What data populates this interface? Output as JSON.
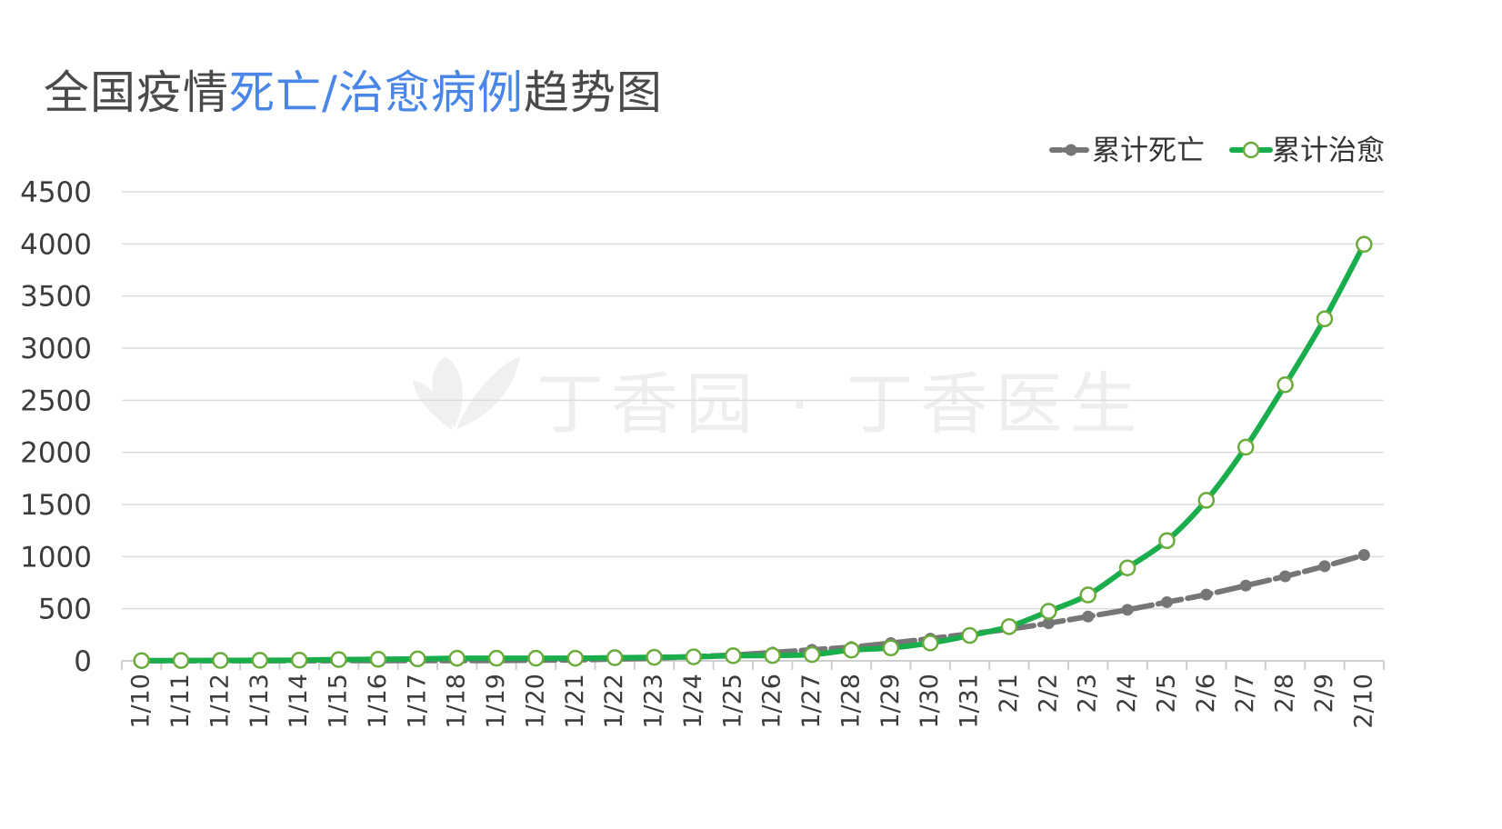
{
  "title": {
    "part1": "全国疫情",
    "part2": "死亡/治愈病例",
    "part3": "趋势图"
  },
  "watermark": "丁香园 · 丁香医生",
  "colors": {
    "deaths": "#767676",
    "recovered": "#1aad4b",
    "recovered_marker_fill": "#ffffff",
    "recovered_marker_stroke": "#6aab3c",
    "highlight": "#4a86e8",
    "grid": "#dcdcdc"
  },
  "chart_data": {
    "type": "line",
    "title": "全国疫情死亡/治愈病例趋势图",
    "categories": [
      "1/10",
      "1/11",
      "1/12",
      "1/13",
      "1/14",
      "1/15",
      "1/16",
      "1/17",
      "1/18",
      "1/19",
      "1/20",
      "1/21",
      "1/22",
      "1/23",
      "1/24",
      "1/25",
      "1/26",
      "1/27",
      "1/28",
      "1/29",
      "1/30",
      "1/31",
      "2/1",
      "2/2",
      "2/3",
      "2/4",
      "2/5",
      "2/6",
      "2/7",
      "2/8",
      "2/9",
      "2/10"
    ],
    "series": [
      {
        "name": "累计死亡",
        "values": [
          1,
          1,
          1,
          1,
          1,
          2,
          2,
          2,
          2,
          3,
          6,
          9,
          17,
          25,
          41,
          56,
          80,
          106,
          132,
          170,
          213,
          259,
          304,
          361,
          425,
          490,
          563,
          636,
          722,
          811,
          908,
          1016
        ]
      },
      {
        "name": "累计治愈",
        "values": [
          2,
          3,
          4,
          5,
          7,
          12,
          15,
          19,
          25,
          25,
          25,
          25,
          30,
          34,
          38,
          49,
          51,
          60,
          103,
          124,
          171,
          243,
          328,
          475,
          632,
          892,
          1153,
          1540,
          2050,
          2649,
          3281,
          3996
        ]
      }
    ],
    "ylim": [
      0,
      4500
    ],
    "yticks": [
      0,
      500,
      1000,
      1500,
      2000,
      2500,
      3000,
      3500,
      4000,
      4500
    ],
    "grid": true,
    "legend_position": "top-right"
  }
}
